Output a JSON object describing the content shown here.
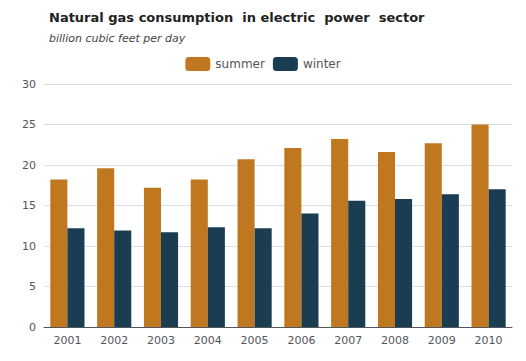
{
  "chart_data": {
    "type": "bar",
    "title": "Natural gas consumption  in electric  power  sector",
    "subtitle": "billion cubic feet per day",
    "categories": [
      "2001",
      "2002",
      "2003",
      "2004",
      "2005",
      "2006",
      "2007",
      "2008",
      "2009",
      "2010"
    ],
    "series": [
      {
        "name": "summer",
        "color": "#C07820",
        "values": [
          18.2,
          19.6,
          17.2,
          18.2,
          20.7,
          22.1,
          23.2,
          21.6,
          22.7,
          25.0
        ]
      },
      {
        "name": "winter",
        "color": "#1A3D52",
        "values": [
          12.2,
          11.9,
          11.7,
          12.3,
          12.2,
          14.0,
          15.6,
          15.8,
          16.4,
          17.0
        ]
      }
    ],
    "ylim": [
      0,
      30
    ],
    "yticks": [
      0,
      5,
      10,
      15,
      20,
      25,
      30
    ],
    "grid": true,
    "legend": "upper center"
  }
}
